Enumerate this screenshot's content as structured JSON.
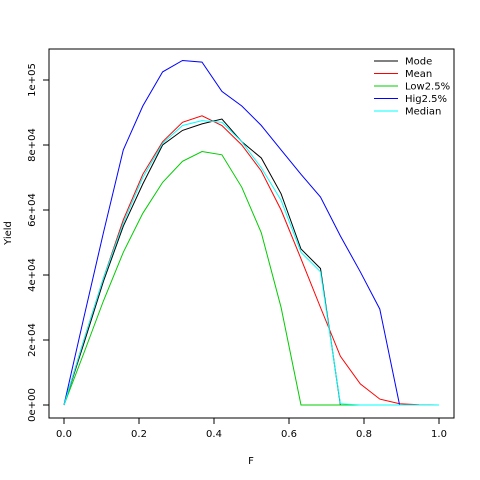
{
  "chart_data": {
    "type": "line",
    "title": "",
    "xlabel": "F",
    "ylabel": "Yield",
    "xlim": [
      0,
      1
    ],
    "ylim": [
      0,
      105000
    ],
    "x_ticks": [
      "0.0",
      "0.2",
      "0.4",
      "0.6",
      "0.8",
      "1.0"
    ],
    "x_tick_values": [
      0,
      0.2,
      0.4,
      0.6,
      0.8,
      1.0
    ],
    "y_ticks": [
      "0e+00",
      "2e+04",
      "4e+04",
      "6e+04",
      "8e+04",
      "1e+05"
    ],
    "y_tick_values": [
      0,
      20000,
      40000,
      60000,
      80000,
      100000
    ],
    "grid": false,
    "legend_position": "top-right",
    "series": [
      {
        "name": "Mode",
        "color": "#000000",
        "x": [
          0,
          0.053,
          0.105,
          0.158,
          0.21,
          0.263,
          0.316,
          0.368,
          0.421,
          0.474,
          0.526,
          0.579,
          0.632,
          0.684,
          0.737,
          0.79,
          0.842,
          0.895,
          0.947,
          1.0
        ],
        "y": [
          0,
          19000,
          38000,
          55000,
          68000,
          80000,
          84500,
          86500,
          88000,
          81000,
          76000,
          65000,
          48000,
          42000,
          0,
          0,
          0,
          0,
          0,
          0
        ]
      },
      {
        "name": "Mean",
        "color": "#ff0000",
        "x": [
          0,
          0.053,
          0.105,
          0.158,
          0.21,
          0.263,
          0.316,
          0.368,
          0.421,
          0.474,
          0.526,
          0.579,
          0.632,
          0.684,
          0.737,
          0.79,
          0.842,
          0.895,
          0.947,
          1.0
        ],
        "y": [
          0,
          20000,
          39000,
          57000,
          71000,
          81000,
          87000,
          89000,
          86000,
          80000,
          72000,
          60000,
          45000,
          30000,
          15000,
          6500,
          1800,
          400,
          50,
          0
        ]
      },
      {
        "name": "Low2.5%",
        "color": "#00cc00",
        "x": [
          0,
          0.053,
          0.105,
          0.158,
          0.21,
          0.263,
          0.316,
          0.368,
          0.421,
          0.474,
          0.526,
          0.579,
          0.632,
          0.684,
          0.737,
          0.79,
          0.842,
          0.895,
          0.947,
          1.0
        ],
        "y": [
          0,
          16000,
          32000,
          47000,
          59000,
          68500,
          75000,
          78000,
          77000,
          67000,
          53000,
          30000,
          0,
          0,
          0,
          0,
          0,
          0,
          0,
          0
        ]
      },
      {
        "name": "Hig2.5%",
        "color": "#0000ff",
        "x": [
          0,
          0.053,
          0.105,
          0.158,
          0.21,
          0.263,
          0.316,
          0.368,
          0.421,
          0.474,
          0.526,
          0.579,
          0.632,
          0.684,
          0.737,
          0.79,
          0.842,
          0.895,
          0.947,
          1.0
        ],
        "y": [
          0,
          27000,
          53000,
          78500,
          92000,
          102500,
          106000,
          105500,
          96500,
          92000,
          86000,
          78500,
          71000,
          64000,
          52000,
          41000,
          29500,
          0,
          0,
          0
        ]
      },
      {
        "name": "Median",
        "color": "#00ffff",
        "x": [
          0,
          0.053,
          0.105,
          0.158,
          0.21,
          0.263,
          0.316,
          0.368,
          0.421,
          0.474,
          0.526,
          0.579,
          0.632,
          0.684,
          0.737,
          0.79,
          0.842,
          0.895,
          0.947,
          1.0
        ],
        "y": [
          0,
          20000,
          39000,
          56000,
          70000,
          80500,
          86000,
          87500,
          87000,
          81000,
          73000,
          63000,
          47000,
          41000,
          400,
          0,
          0,
          0,
          0,
          0
        ]
      }
    ]
  }
}
